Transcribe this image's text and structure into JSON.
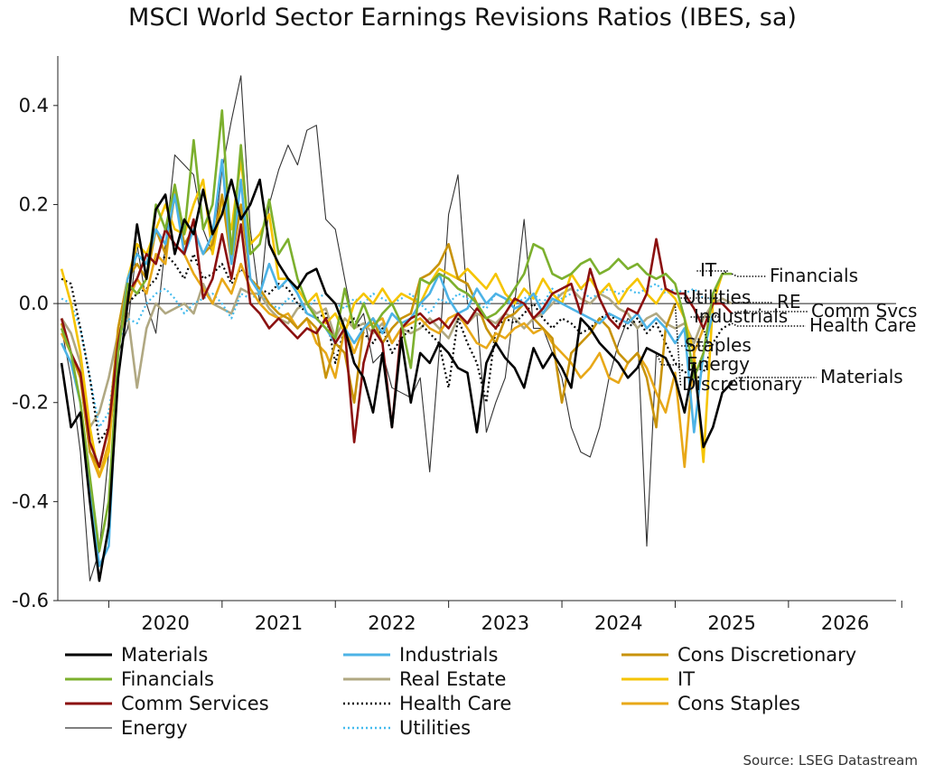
{
  "chart_data": {
    "type": "line",
    "title": "MSCI World Sector Earnings Revisions Ratios (IBES, sa)",
    "xlabel": "",
    "ylabel": "",
    "xlim": [
      2019.55,
      2026.95
    ],
    "ylim": [
      -0.6,
      0.5
    ],
    "y_ticks": [
      0.4,
      0.2,
      0.0,
      -0.2,
      -0.4,
      -0.6
    ],
    "y_tick_labels": [
      "0.4",
      "0.2",
      "0.0",
      "-0.2",
      "-0.4",
      "-0.6"
    ],
    "x_tick_labels": [
      "2020",
      "2021",
      "2022",
      "2023",
      "2024",
      "2025",
      "2026"
    ],
    "zero_line": true,
    "grid": false,
    "legend_position": "bottom",
    "source": "Source: LSEG Datastream",
    "x_start": 2019.583,
    "x_step": 0.08333,
    "series": [
      {
        "name": "Materials",
        "label": "",
        "color": "#000000",
        "width": 2.6,
        "dash": "",
        "values": [
          -0.12,
          -0.25,
          -0.22,
          -0.4,
          -0.56,
          -0.45,
          -0.15,
          0.0,
          0.16,
          0.05,
          0.19,
          0.22,
          0.1,
          0.17,
          0.14,
          0.23,
          0.14,
          0.18,
          0.25,
          0.17,
          0.2,
          0.25,
          0.12,
          0.08,
          0.05,
          0.03,
          0.06,
          0.07,
          0.02,
          0.0,
          -0.05,
          -0.12,
          -0.15,
          -0.22,
          -0.1,
          -0.25,
          -0.07,
          -0.2,
          -0.1,
          -0.12,
          -0.08,
          -0.1,
          -0.13,
          -0.14,
          -0.26,
          -0.12,
          -0.08,
          -0.11,
          -0.13,
          -0.17,
          -0.09,
          -0.13,
          -0.1,
          -0.13,
          -0.17,
          -0.03,
          -0.05,
          -0.08,
          -0.1,
          -0.12,
          -0.15,
          -0.13,
          -0.09,
          -0.1,
          -0.11,
          -0.15,
          -0.22,
          -0.12,
          -0.29,
          -0.25,
          -0.18,
          -0.16
        ]
      },
      {
        "name": "Financials",
        "label": "Financials",
        "color": "#7cb02e",
        "width": 2.6,
        "dash": "",
        "values": [
          -0.05,
          -0.1,
          -0.2,
          -0.35,
          -0.5,
          -0.4,
          -0.1,
          0.04,
          0.02,
          0.05,
          0.2,
          0.15,
          0.24,
          0.14,
          0.33,
          0.15,
          0.2,
          0.39,
          0.1,
          0.32,
          0.1,
          0.12,
          0.21,
          0.1,
          0.13,
          0.05,
          0.0,
          -0.03,
          -0.05,
          -0.07,
          0.03,
          -0.05,
          0.0,
          -0.05,
          -0.02,
          0.0,
          -0.04,
          -0.13,
          0.05,
          0.04,
          0.06,
          0.05,
          0.03,
          0.02,
          0.0,
          -0.03,
          -0.02,
          0.0,
          0.03,
          0.06,
          0.12,
          0.11,
          0.06,
          0.05,
          0.06,
          0.08,
          0.09,
          0.06,
          0.07,
          0.09,
          0.07,
          0.08,
          0.06,
          0.05,
          0.06,
          0.04,
          -0.03,
          -0.15,
          -0.1,
          0.02,
          0.06,
          0.06
        ]
      },
      {
        "name": "Comm Services",
        "label": "Comm Svcs",
        "color": "#8b1010",
        "width": 2.6,
        "dash": "",
        "values": [
          -0.03,
          -0.1,
          -0.14,
          -0.28,
          -0.33,
          -0.25,
          -0.08,
          0.02,
          0.05,
          0.1,
          0.08,
          0.15,
          0.12,
          0.1,
          0.17,
          0.01,
          0.05,
          0.14,
          0.05,
          0.16,
          0.0,
          -0.02,
          -0.05,
          -0.03,
          -0.05,
          -0.07,
          -0.05,
          -0.06,
          -0.03,
          -0.08,
          -0.05,
          -0.28,
          -0.12,
          -0.05,
          -0.08,
          -0.25,
          -0.05,
          -0.03,
          -0.02,
          -0.04,
          -0.03,
          -0.05,
          -0.02,
          -0.04,
          -0.01,
          -0.03,
          -0.05,
          -0.02,
          0.01,
          0.0,
          -0.03,
          -0.01,
          0.02,
          0.03,
          0.04,
          -0.02,
          0.07,
          0.01,
          -0.03,
          -0.05,
          -0.01,
          -0.02,
          0.02,
          0.13,
          0.03,
          0.02,
          0.02,
          -0.01,
          -0.05,
          0.0,
          0.0,
          -0.02
        ]
      },
      {
        "name": "Energy",
        "label": "Energy",
        "color": "#333333",
        "width": 1.1,
        "dash": "",
        "values": [
          -0.05,
          -0.15,
          -0.3,
          -0.56,
          -0.5,
          -0.3,
          -0.1,
          -0.05,
          0.12,
          0.0,
          -0.06,
          0.12,
          0.3,
          0.28,
          0.26,
          0.15,
          0.1,
          0.27,
          0.37,
          0.46,
          0.15,
          0.0,
          0.2,
          0.27,
          0.32,
          0.28,
          0.35,
          0.36,
          0.17,
          0.15,
          0.05,
          -0.05,
          -0.02,
          -0.12,
          -0.1,
          -0.17,
          -0.18,
          -0.19,
          -0.15,
          -0.34,
          -0.1,
          0.18,
          0.26,
          0.0,
          -0.02,
          -0.26,
          -0.2,
          -0.15,
          0.0,
          0.17,
          -0.05,
          -0.05,
          -0.1,
          -0.15,
          -0.25,
          -0.3,
          -0.31,
          -0.25,
          -0.15,
          -0.08,
          -0.03,
          -0.05,
          -0.49,
          -0.1
        ]
      },
      {
        "name": "Industrials",
        "label": "Industrials",
        "color": "#4db3e6",
        "width": 2.6,
        "dash": "",
        "values": [
          -0.08,
          -0.12,
          -0.2,
          -0.38,
          -0.53,
          -0.49,
          -0.1,
          0.05,
          0.1,
          0.08,
          0.15,
          0.12,
          0.22,
          0.1,
          0.15,
          0.1,
          0.14,
          0.29,
          0.08,
          0.25,
          0.05,
          0.02,
          0.08,
          0.03,
          0.05,
          0.02,
          -0.02,
          -0.03,
          -0.05,
          -0.08,
          -0.05,
          -0.08,
          -0.05,
          -0.03,
          -0.06,
          -0.02,
          -0.04,
          -0.03,
          0.0,
          0.02,
          0.06,
          0.01,
          -0.02,
          -0.01,
          0.03,
          0.0,
          0.02,
          0.01,
          -0.01,
          0.0,
          0.02,
          -0.02,
          0.01,
          0.0,
          -0.01,
          -0.02,
          -0.03,
          -0.04,
          -0.02,
          -0.03,
          -0.04,
          -0.02,
          -0.05,
          -0.03,
          -0.05,
          -0.08,
          -0.05,
          -0.26,
          -0.1,
          -0.02
        ]
      },
      {
        "name": "Real Estate",
        "label": "RE",
        "color": "#b0a882",
        "width": 2.6,
        "dash": "",
        "values": [
          -0.03,
          -0.06,
          -0.12,
          -0.25,
          -0.22,
          -0.15,
          -0.06,
          -0.02,
          -0.17,
          -0.05,
          0.0,
          -0.02,
          -0.01,
          0.0,
          -0.02,
          0.04,
          0.0,
          -0.01,
          -0.02,
          0.03,
          0.02,
          0.02,
          -0.01,
          -0.03,
          -0.04,
          -0.01,
          0.0,
          -0.02,
          -0.01,
          -0.07,
          -0.03,
          -0.05,
          -0.04,
          -0.06,
          -0.04,
          -0.08,
          -0.05,
          -0.06,
          -0.05,
          -0.03,
          -0.05,
          -0.07,
          -0.03,
          -0.04,
          -0.02,
          -0.03,
          -0.04,
          -0.02,
          -0.03,
          -0.05,
          -0.03,
          -0.02,
          0.0,
          0.02,
          0.03,
          0.01,
          0.0,
          0.02,
          0.01,
          -0.01,
          -0.02,
          -0.05,
          -0.03,
          -0.02,
          -0.04,
          -0.05,
          -0.04,
          -0.08,
          -0.03,
          0.0,
          0.01,
          0.0
        ]
      },
      {
        "name": "Health Care",
        "label": "Health Care",
        "color": "#000000",
        "width": 2.2,
        "dash": "2,3",
        "values": [
          0.05,
          0.04,
          -0.05,
          -0.15,
          -0.28,
          -0.25,
          -0.08,
          0.0,
          0.02,
          0.03,
          0.05,
          0.1,
          0.08,
          0.05,
          0.1,
          0.05,
          0.06,
          0.08,
          0.04,
          0.07,
          0.05,
          0.03,
          0.02,
          0.04,
          0.03,
          0.0,
          -0.02,
          -0.03,
          -0.02,
          -0.12,
          -0.05,
          -0.03,
          -0.06,
          -0.08,
          -0.05,
          -0.1,
          -0.07,
          -0.05,
          -0.04,
          -0.06,
          -0.08,
          -0.17,
          -0.03,
          -0.08,
          -0.12,
          -0.2,
          -0.05,
          -0.03,
          -0.04,
          -0.02,
          0.0,
          -0.03,
          -0.05,
          -0.03,
          -0.04,
          -0.06,
          -0.05,
          -0.03,
          -0.02,
          -0.04,
          -0.05,
          -0.03,
          -0.06,
          -0.04,
          -0.08,
          -0.12,
          -0.14,
          -0.13,
          -0.14,
          -0.08,
          -0.05,
          -0.04
        ]
      },
      {
        "name": "Utilities",
        "label": "Utilities",
        "color": "#44bbee",
        "width": 2.2,
        "dash": "2,3",
        "values": [
          0.01,
          0.0,
          -0.05,
          -0.15,
          -0.25,
          -0.22,
          -0.08,
          -0.03,
          -0.04,
          0.0,
          0.02,
          0.03,
          0.01,
          -0.02,
          0.0,
          0.01,
          0.02,
          0.0,
          -0.03,
          0.02,
          0.01,
          0.02,
          0.0,
          -0.01,
          0.01,
          0.0,
          -0.01,
          0.01,
          0.02,
          0.0,
          -0.01,
          0.01,
          0.0,
          0.02,
          0.01,
          0.0,
          0.01,
          0.02,
          0.0,
          -0.02,
          0.01,
          0.0,
          0.02,
          0.01,
          0.0,
          -0.01,
          0.02,
          0.01,
          0.0,
          0.01,
          0.02,
          0.0,
          0.03,
          0.01,
          0.02,
          0.03,
          0.01,
          0.02,
          0.03,
          0.02,
          0.03,
          0.02,
          0.03,
          0.04,
          0.02,
          0.03,
          0.02,
          0.03,
          0.01,
          0.01
        ]
      },
      {
        "name": "Cons Discretionary",
        "label": "Discretionary",
        "color": "#c8930a",
        "width": 2.6,
        "dash": "",
        "values": [
          -0.04,
          -0.1,
          -0.15,
          -0.3,
          -0.33,
          -0.25,
          -0.05,
          0.05,
          0.08,
          0.05,
          0.15,
          0.1,
          0.22,
          0.12,
          0.15,
          0.1,
          0.12,
          0.22,
          0.08,
          0.2,
          0.05,
          0.03,
          0.0,
          -0.02,
          -0.03,
          -0.05,
          -0.03,
          -0.05,
          -0.15,
          -0.08,
          -0.1,
          -0.2,
          -0.05,
          -0.03,
          -0.08,
          -0.05,
          -0.03,
          -0.02,
          0.05,
          0.06,
          0.08,
          0.12,
          0.05,
          0.04,
          0.0,
          -0.05,
          -0.08,
          -0.03,
          -0.02,
          0.0,
          -0.03,
          -0.05,
          -0.07,
          -0.2,
          -0.1,
          -0.08,
          -0.06,
          -0.03,
          -0.05,
          -0.1,
          -0.12,
          -0.1,
          -0.15,
          -0.25,
          -0.05,
          0.0
        ]
      },
      {
        "name": "IT",
        "label": "IT",
        "color": "#f5c400",
        "width": 2.6,
        "dash": "",
        "values": [
          0.07,
          0.0,
          -0.1,
          -0.25,
          -0.35,
          -0.3,
          -0.05,
          0.05,
          0.12,
          0.1,
          0.15,
          0.2,
          0.15,
          0.14,
          0.2,
          0.25,
          0.1,
          0.21,
          0.15,
          0.29,
          0.12,
          0.14,
          0.18,
          0.05,
          0.05,
          0.03,
          0.0,
          0.02,
          -0.04,
          -0.02,
          -0.06,
          0.0,
          0.02,
          0.0,
          0.03,
          0.0,
          0.02,
          0.01,
          0.0,
          0.04,
          0.07,
          0.06,
          0.05,
          0.07,
          0.05,
          0.03,
          0.06,
          0.02,
          0.0,
          0.03,
          0.01,
          0.05,
          0.02,
          0.0,
          0.06,
          0.03,
          0.05,
          0.02,
          0.04,
          0.0,
          0.03,
          0.05,
          0.02,
          0.0,
          0.03,
          0.01,
          -0.03,
          -0.1,
          -0.32,
          0.0,
          0.06
        ]
      },
      {
        "name": "Cons Staples",
        "label": "Staples",
        "color": "#e8a818",
        "width": 2.6,
        "dash": "",
        "values": [
          -0.06,
          -0.1,
          -0.15,
          -0.3,
          -0.35,
          -0.28,
          -0.08,
          0.0,
          0.05,
          0.02,
          0.1,
          0.08,
          0.24,
          0.1,
          0.06,
          0.03,
          0.0,
          0.05,
          0.02,
          0.08,
          0.03,
          0.0,
          -0.02,
          -0.03,
          -0.02,
          -0.05,
          -0.03,
          -0.08,
          -0.1,
          -0.15,
          -0.05,
          -0.1,
          -0.05,
          -0.04,
          -0.03,
          -0.08,
          -0.05,
          -0.04,
          -0.03,
          -0.05,
          -0.06,
          -0.03,
          -0.02,
          -0.05,
          -0.08,
          -0.09,
          -0.06,
          -0.07,
          -0.05,
          -0.04,
          -0.06,
          -0.05,
          -0.08,
          -0.1,
          -0.12,
          -0.15,
          -0.13,
          -0.1,
          -0.15,
          -0.16,
          -0.12,
          -0.1,
          -0.13,
          -0.18,
          -0.22,
          -0.14,
          -0.33,
          -0.1,
          -0.05
        ]
      }
    ],
    "end_labels": [
      {
        "text": "IT",
        "dy": -6,
        "line_to": 840
      },
      {
        "text": "Financials",
        "dy": 0,
        "line_to": 848
      },
      {
        "text": "Utilities",
        "dy": -6,
        "line_to": 850
      },
      {
        "text": "RE",
        "dy": 0,
        "line_to": 850
      },
      {
        "text": "Comm Svcs",
        "dy": 0,
        "line_to": 890
      },
      {
        "text": "Industrials",
        "dy": 0,
        "line_to": 888
      },
      {
        "text": "Health Care",
        "dy": 0,
        "line_to": 890
      },
      {
        "text": "Staples",
        "dy": 0,
        "line_to": 0
      },
      {
        "text": "Energy",
        "dy": 0,
        "line_to": 0
      },
      {
        "text": "Materials",
        "dy": 0,
        "line_to": 905
      },
      {
        "text": "Discretionary",
        "dy": 0,
        "line_to": 0
      }
    ]
  },
  "legend": {
    "items": [
      {
        "name": "Materials",
        "color": "#000000",
        "dash": "",
        "width": 3
      },
      {
        "name": "Financials",
        "color": "#7cb02e",
        "dash": "",
        "width": 3
      },
      {
        "name": "Comm Services",
        "color": "#8b1010",
        "dash": "",
        "width": 3
      },
      {
        "name": "Energy",
        "color": "#333333",
        "dash": "",
        "width": 1.2
      },
      {
        "name": "Industrials",
        "color": "#4db3e6",
        "dash": "",
        "width": 3
      },
      {
        "name": "Real Estate",
        "color": "#b0a882",
        "dash": "",
        "width": 3
      },
      {
        "name": "Health Care",
        "color": "#000000",
        "dash": "2,3",
        "width": 2.5
      },
      {
        "name": "Utilities",
        "color": "#44bbee",
        "dash": "2,3",
        "width": 2.5
      },
      {
        "name": "Cons Discretionary",
        "color": "#c8930a",
        "dash": "",
        "width": 3
      },
      {
        "name": "IT",
        "color": "#f5c400",
        "dash": "",
        "width": 3
      },
      {
        "name": "Cons Staples",
        "color": "#e8a818",
        "dash": "",
        "width": 3
      }
    ]
  }
}
